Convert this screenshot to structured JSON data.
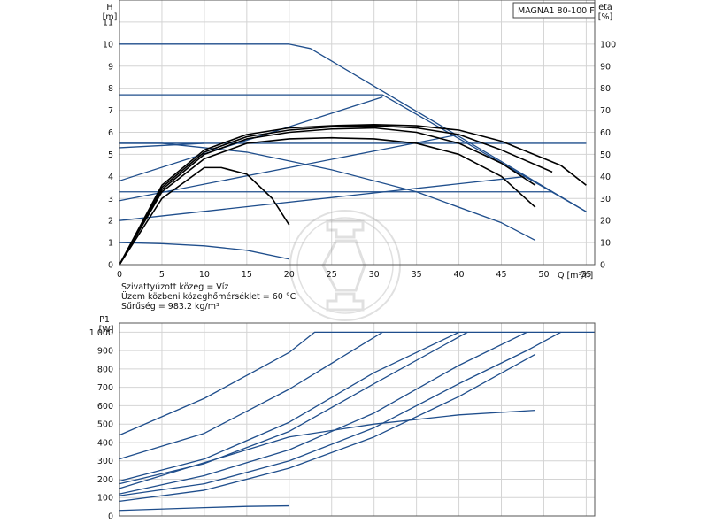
{
  "chart_data": [
    {
      "type": "line",
      "title": "MAGNA1 80-100 F",
      "xlabel": "Q [m³/h]",
      "ylabel_left": "H\n[m]",
      "ylabel_right": "eta\n[%]",
      "xlim": [
        0,
        56
      ],
      "ylim": [
        0,
        12
      ],
      "y2lim": [
        0,
        120
      ],
      "x_ticks": [
        0,
        5,
        10,
        15,
        20,
        25,
        30,
        35,
        40,
        45,
        50,
        55
      ],
      "y_ticks": [
        0,
        1,
        2,
        3,
        4,
        5,
        6,
        7,
        8,
        9,
        10,
        11
      ],
      "y2_ticks": [
        0,
        10,
        20,
        30,
        40,
        50,
        60,
        70,
        80,
        90,
        100
      ],
      "grid": true,
      "info_lines": [
        "Szivattyúzott közeg = Víz",
        "Üzem közbeni közeghőmérséklet = 60 °C",
        "Sűrűség = 983.2 kg/m³"
      ],
      "series": [
        {
          "kind": "head",
          "color": "#1f4e8c",
          "points": [
            [
              0,
              10
            ],
            [
              20,
              10
            ],
            [
              22.5,
              9.8
            ],
            [
              55,
              2.4
            ]
          ]
        },
        {
          "kind": "head",
          "color": "#1f4e8c",
          "points": [
            [
              0,
              7.7
            ],
            [
              31,
              7.7
            ],
            [
              55,
              2.4
            ]
          ]
        },
        {
          "kind": "head",
          "color": "#1f4e8c",
          "points": [
            [
              0,
              5.5
            ],
            [
              5,
              5.5
            ],
            [
              15,
              5.1
            ],
            [
              25,
              4.3
            ],
            [
              35,
              3.3
            ],
            [
              45,
              1.9
            ],
            [
              49,
              1.1
            ]
          ]
        },
        {
          "kind": "head",
          "color": "#1f4e8c",
          "points": [
            [
              0,
              5.5
            ],
            [
              55,
              5.5
            ]
          ]
        },
        {
          "kind": "head",
          "color": "#1f4e8c",
          "points": [
            [
              0,
              3.3
            ],
            [
              51,
              3.3
            ]
          ]
        },
        {
          "kind": "head",
          "color": "#1f4e8c",
          "points": [
            [
              0,
              1.0
            ],
            [
              5,
              0.95
            ],
            [
              10,
              0.85
            ],
            [
              15,
              0.65
            ],
            [
              20,
              0.25
            ]
          ]
        },
        {
          "kind": "control",
          "color": "#1f4e8c",
          "points": [
            [
              0,
              3.8
            ],
            [
              31,
              7.6
            ]
          ]
        },
        {
          "kind": "control",
          "color": "#1f4e8c",
          "points": [
            [
              0,
              2.9
            ],
            [
              40,
              5.9
            ]
          ]
        },
        {
          "kind": "control",
          "color": "#1f4e8c",
          "points": [
            [
              0,
              2.0
            ],
            [
              48,
              4.0
            ]
          ]
        },
        {
          "kind": "control",
          "color": "#1f4e8c",
          "points": [
            [
              0,
              5.3
            ],
            [
              10,
              5.5
            ]
          ]
        },
        {
          "kind": "efficiency",
          "color": "#000000",
          "points": [
            [
              0,
              0
            ],
            [
              5,
              30
            ],
            [
              10,
              44
            ],
            [
              12,
              44
            ],
            [
              15,
              41
            ],
            [
              18,
              30
            ],
            [
              20,
              18
            ]
          ]
        },
        {
          "kind": "efficiency",
          "color": "#000000",
          "points": [
            [
              0,
              0
            ],
            [
              5,
              33
            ],
            [
              10,
              48
            ],
            [
              15,
              55
            ],
            [
              20,
              57
            ],
            [
              25,
              57.5
            ],
            [
              30,
              57
            ],
            [
              35,
              55
            ],
            [
              40,
              50
            ],
            [
              45,
              40
            ],
            [
              49,
              26
            ]
          ]
        },
        {
          "kind": "efficiency",
          "color": "#000000",
          "points": [
            [
              0,
              0
            ],
            [
              5,
              34
            ],
            [
              10,
              50
            ],
            [
              15,
              57
            ],
            [
              20,
              60
            ],
            [
              25,
              61.5
            ],
            [
              30,
              62
            ],
            [
              35,
              60
            ],
            [
              40,
              55
            ],
            [
              45,
              46
            ],
            [
              49,
              36
            ]
          ]
        },
        {
          "kind": "efficiency",
          "color": "#000000",
          "points": [
            [
              0,
              0
            ],
            [
              5,
              35
            ],
            [
              10,
              51
            ],
            [
              15,
              58
            ],
            [
              20,
              61
            ],
            [
              25,
              62.5
            ],
            [
              30,
              63
            ],
            [
              35,
              62
            ],
            [
              40,
              59
            ],
            [
              45,
              52
            ],
            [
              51,
              42
            ]
          ]
        },
        {
          "kind": "efficiency",
          "color": "#000000",
          "points": [
            [
              0,
              0
            ],
            [
              5,
              36
            ],
            [
              10,
              52
            ],
            [
              15,
              59
            ],
            [
              20,
              62
            ],
            [
              25,
              63
            ],
            [
              30,
              63.5
            ],
            [
              35,
              63
            ],
            [
              40,
              61
            ],
            [
              45,
              56
            ],
            [
              52,
              45
            ],
            [
              55,
              36
            ]
          ]
        }
      ]
    },
    {
      "type": "line",
      "ylabel": "P1\n[W]",
      "xlim": [
        0,
        56
      ],
      "ylim": [
        0,
        1050
      ],
      "y_ticks": [
        0,
        100,
        200,
        300,
        400,
        500,
        600,
        700,
        800,
        900,
        1000
      ],
      "y_tick_labels": [
        "0",
        "100",
        "200",
        "300",
        "400",
        "500",
        "600",
        "700",
        "800",
        "900",
        "1 000"
      ],
      "grid": true,
      "series": [
        {
          "color": "#1f4e8c",
          "points": [
            [
              0,
              440
            ],
            [
              10,
              640
            ],
            [
              20,
              890
            ],
            [
              23,
              1000
            ],
            [
              56,
              1000
            ]
          ]
        },
        {
          "color": "#1f4e8c",
          "points": [
            [
              0,
              310
            ],
            [
              10,
              450
            ],
            [
              20,
              690
            ],
            [
              31,
              1000
            ]
          ]
        },
        {
          "color": "#1f4e8c",
          "points": [
            [
              0,
              190
            ],
            [
              10,
              310
            ],
            [
              20,
              510
            ],
            [
              30,
              780
            ],
            [
              40,
              1000
            ]
          ]
        },
        {
          "color": "#1f4e8c",
          "points": [
            [
              0,
              175
            ],
            [
              10,
              285
            ],
            [
              20,
              460
            ],
            [
              30,
              720
            ],
            [
              41,
              1000
            ]
          ]
        },
        {
          "color": "#1f4e8c",
          "points": [
            [
              0,
              120
            ],
            [
              10,
              220
            ],
            [
              20,
              360
            ],
            [
              30,
              560
            ],
            [
              40,
              820
            ],
            [
              48,
              1000
            ]
          ]
        },
        {
          "color": "#1f4e8c",
          "points": [
            [
              0,
              110
            ],
            [
              10,
              175
            ],
            [
              20,
              300
            ],
            [
              30,
              480
            ],
            [
              40,
              720
            ],
            [
              48,
              900
            ],
            [
              52,
              1000
            ]
          ]
        },
        {
          "color": "#1f4e8c",
          "points": [
            [
              0,
              80
            ],
            [
              10,
              140
            ],
            [
              20,
              260
            ],
            [
              30,
              430
            ],
            [
              40,
              650
            ],
            [
              49,
              880
            ]
          ]
        },
        {
          "color": "#1f4e8c",
          "points": [
            [
              0,
              150
            ],
            [
              10,
              290
            ],
            [
              20,
              430
            ],
            [
              30,
              500
            ],
            [
              40,
              550
            ],
            [
              49,
              575
            ]
          ]
        },
        {
          "color": "#1f4e8c",
          "points": [
            [
              0,
              30
            ],
            [
              10,
              45
            ],
            [
              15,
              52
            ],
            [
              20,
              55
            ]
          ]
        }
      ]
    }
  ]
}
